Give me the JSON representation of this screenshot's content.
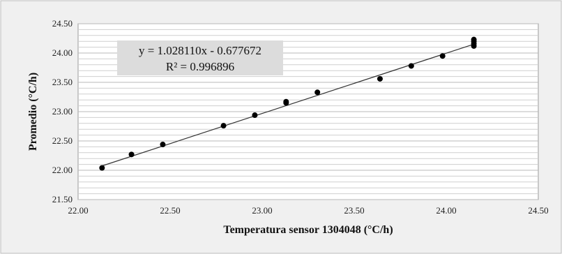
{
  "chart_data": {
    "type": "scatter",
    "xlabel": "Temperatura   sensor 1304048 (°C/h)",
    "ylabel": "Promedio (°C/h)",
    "xlim": [
      22.0,
      24.5
    ],
    "ylim": [
      21.5,
      24.5
    ],
    "x_ticks": [
      "22.00",
      "22.50",
      "23.00",
      "23.50",
      "24.00",
      "24.50"
    ],
    "y_ticks": [
      "21.50",
      "22.00",
      "22.50",
      "23.00",
      "23.50",
      "24.00",
      "24.50"
    ],
    "grid": true,
    "points": [
      {
        "x": 22.13,
        "y": 22.04
      },
      {
        "x": 22.29,
        "y": 22.27
      },
      {
        "x": 22.46,
        "y": 22.44
      },
      {
        "x": 22.79,
        "y": 22.76
      },
      {
        "x": 22.96,
        "y": 22.94
      },
      {
        "x": 23.13,
        "y": 23.15
      },
      {
        "x": 23.13,
        "y": 23.17
      },
      {
        "x": 23.3,
        "y": 23.33
      },
      {
        "x": 23.64,
        "y": 23.56
      },
      {
        "x": 23.81,
        "y": 23.78
      },
      {
        "x": 23.98,
        "y": 23.95
      },
      {
        "x": 24.15,
        "y": 24.12
      },
      {
        "x": 24.15,
        "y": 24.16
      },
      {
        "x": 24.15,
        "y": 24.2
      },
      {
        "x": 24.15,
        "y": 24.23
      }
    ],
    "trendline": {
      "slope": 1.02811,
      "intercept": -0.677672,
      "x_range": [
        22.13,
        24.15
      ]
    },
    "annotations": {
      "equation": "y = 1.028110x - 0.677672",
      "r_squared": "R² = 0.996896"
    },
    "colors": {
      "background": "#f0f0f0",
      "plot_area": "#ffffff",
      "gridline": "#cfcfcf",
      "marker": "#000000",
      "trendline": "#333333",
      "annotation_box": "#dcdcdc"
    }
  }
}
